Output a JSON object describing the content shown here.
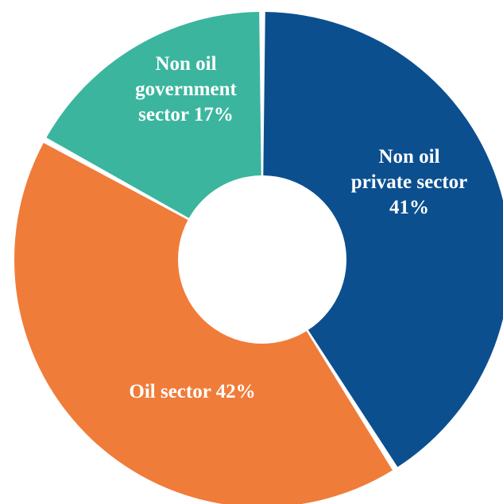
{
  "chart_data": {
    "type": "pie",
    "donut": true,
    "slices": [
      {
        "name": "Non oil private sector",
        "value": 41,
        "color": "#0b4f8f",
        "label_lines": [
          "Non oil",
          "private sector",
          "41%"
        ]
      },
      {
        "name": "Oil sector",
        "value": 42,
        "color": "#f07c3a",
        "label_lines": [
          "Oil sector 42%"
        ]
      },
      {
        "name": "Non oil government sector",
        "value": 17,
        "color": "#3bb59e",
        "label_lines": [
          "Non oil",
          "government",
          "sector 17%"
        ]
      }
    ],
    "title": "",
    "legend": "none"
  }
}
